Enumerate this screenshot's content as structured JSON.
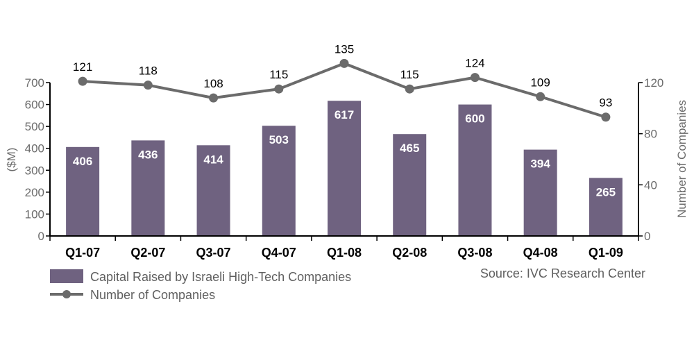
{
  "chart_data": {
    "type": "bar",
    "categories": [
      "Q1-07",
      "Q2-07",
      "Q3-07",
      "Q4-07",
      "Q1-08",
      "Q2-08",
      "Q3-08",
      "Q4-08",
      "Q1-09"
    ],
    "series": [
      {
        "name": "Capital Raised by Israeli High-Tech Companies",
        "type": "bar",
        "axis": "left",
        "values": [
          406,
          436,
          414,
          503,
          617,
          465,
          600,
          394,
          265
        ]
      },
      {
        "name": "Number of Companies",
        "type": "line",
        "axis": "right",
        "values": [
          121,
          118,
          108,
          115,
          135,
          115,
          124,
          109,
          93
        ]
      }
    ],
    "ylabel": "($M)",
    "ylabel_right": "Number of Companies",
    "ylim": [
      0,
      700
    ],
    "ylim_right": [
      0,
      120
    ],
    "yticks": [
      0,
      100,
      200,
      300,
      400,
      500,
      600,
      700
    ],
    "yticks_right": [
      0,
      40,
      80,
      120
    ],
    "legend_position": "bottom-left",
    "grid": false,
    "colors": {
      "bar": "#6f6280",
      "line": "#6b6b6b",
      "axis": "#000000",
      "tick_text": "#6b6b6b"
    }
  },
  "source": "Source: IVC Research Center"
}
